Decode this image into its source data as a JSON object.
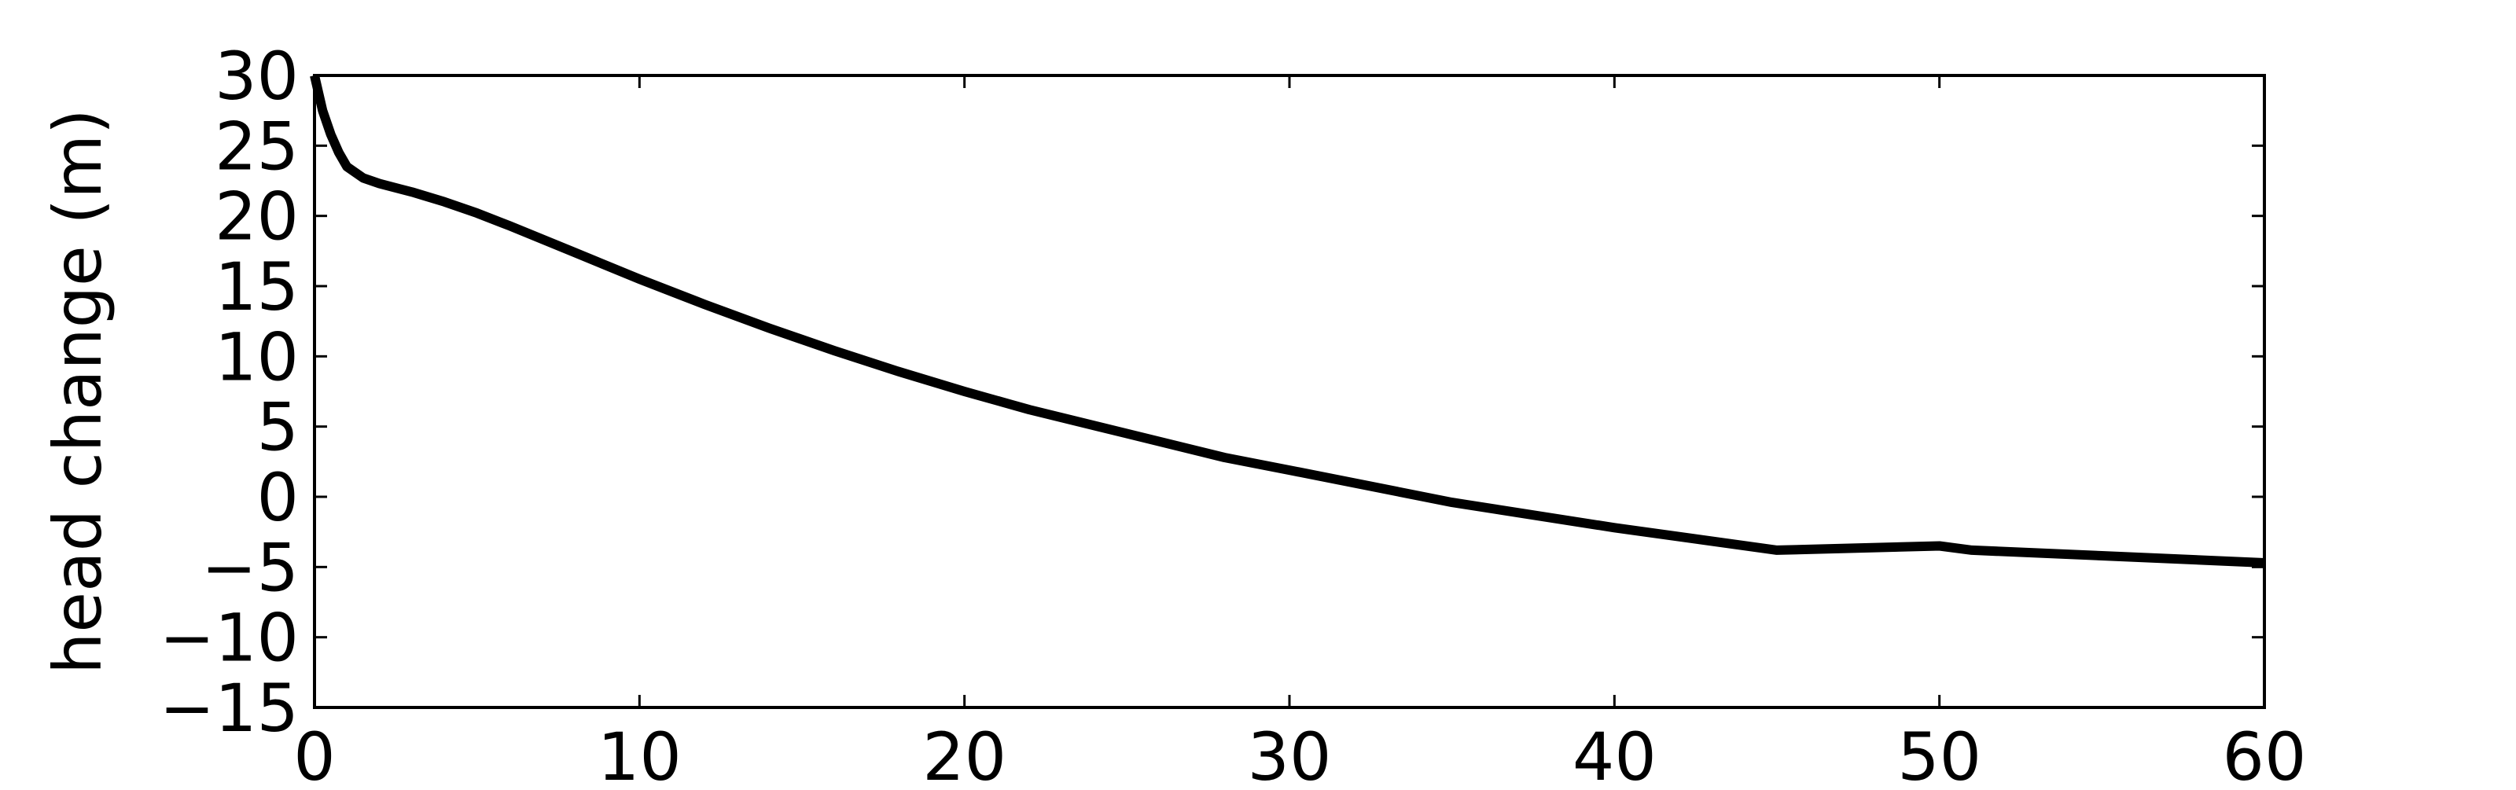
{
  "chart_data": {
    "type": "line",
    "title": "",
    "xlabel": "",
    "ylabel": "head change (m)",
    "xlim": [
      0,
      60
    ],
    "ylim": [
      -15,
      30
    ],
    "xticks": [
      0,
      10,
      20,
      30,
      40,
      50,
      60
    ],
    "xtick_labels": [
      "0",
      "10",
      "20",
      "30",
      "40",
      "50",
      "60"
    ],
    "yticks": [
      -15,
      -10,
      -5,
      0,
      5,
      10,
      15,
      20,
      25,
      30
    ],
    "ytick_labels": [
      "−15",
      "−10",
      "−5",
      "0",
      "5",
      "10",
      "15",
      "20",
      "25",
      "30"
    ],
    "grid": false,
    "legend": "none",
    "series": [
      {
        "color": "#000000",
        "x": [
          0,
          0.25,
          0.5,
          0.75,
          1,
          1.5,
          2,
          3,
          4,
          5,
          6,
          8,
          10,
          12,
          14,
          16,
          18,
          20,
          22,
          25,
          28,
          30,
          35,
          40,
          45,
          50,
          51,
          55,
          60
        ],
        "y": [
          30,
          27.5,
          25.8,
          24.5,
          23.5,
          22.7,
          22.3,
          21.7,
          21.0,
          20.2,
          19.3,
          17.4,
          15.5,
          13.7,
          12.0,
          10.4,
          8.9,
          7.5,
          6.2,
          4.5,
          2.8,
          1.9,
          -0.4,
          -2.2,
          -3.8,
          -3.5,
          -3.8,
          -4.2,
          -4.7
        ]
      }
    ]
  }
}
